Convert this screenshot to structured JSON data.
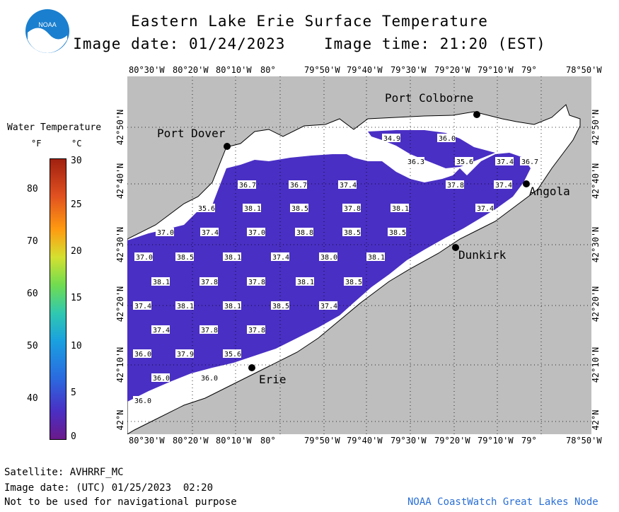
{
  "header": {
    "title": "Eastern Lake Erie Surface Temperature",
    "image_date": "Image date: 01/24/2023",
    "image_time": "Image time: 21:20 (EST)"
  },
  "logo": {
    "text": "NOAA"
  },
  "legend": {
    "title": "Water Temperature",
    "unit_f": "°F",
    "unit_c": "°C",
    "f_ticks": [
      "80",
      "70",
      "60",
      "50",
      "40"
    ],
    "c_ticks": [
      "30",
      "25",
      "20",
      "15",
      "10",
      "5",
      "0"
    ]
  },
  "axes": {
    "lon_labels": [
      "80°30'W",
      "80°20'W",
      "80°10'W",
      "80°",
      "79°50'W",
      "79°40'W",
      "79°30'W",
      "79°20'W",
      "79°10'W",
      "79°",
      "78°50'W"
    ],
    "lat_labels": [
      "42°50'N",
      "42°40'N",
      "42°30'N",
      "42°20'N",
      "42°10'N",
      "42°N"
    ]
  },
  "map": {
    "cities": [
      "Port Colborne",
      "Port Dover",
      "Angola",
      "Dunkirk",
      "Erie"
    ],
    "temperature_labels": [
      "34.9",
      "36.0",
      "36.3",
      "35.6",
      "37.4",
      "36.7",
      "36.7",
      "36.7",
      "37.4",
      "37.8",
      "37.4",
      "35.6",
      "38.1",
      "38.5",
      "37.8",
      "38.1",
      "37.4",
      "37.0",
      "37.4",
      "37.0",
      "38.8",
      "38.5",
      "38.5",
      "37.0",
      "38.5",
      "38.1",
      "37.4",
      "38.0",
      "38.1",
      "38.1",
      "37.8",
      "37.8",
      "38.1",
      "38.5",
      "37.4",
      "38.1",
      "38.1",
      "38.5",
      "37.4",
      "37.4",
      "37.8",
      "37.8",
      "36.0",
      "37.9",
      "35.6",
      "36.0",
      "36.0",
      "36.0"
    ],
    "colors": {
      "land": "#bebebe",
      "lake": "#ffffff",
      "water_data": "#4a2fc4"
    }
  },
  "footer": {
    "satellite": "Satellite: AVHRRF_MC",
    "utc_date": "Image date: (UTC) 01/25/2023  02:20",
    "disclaimer": "Not to be used for navigational purpose",
    "credit": "NOAA CoastWatch Great Lakes Node",
    "credit_color": "#2a6fd6"
  }
}
